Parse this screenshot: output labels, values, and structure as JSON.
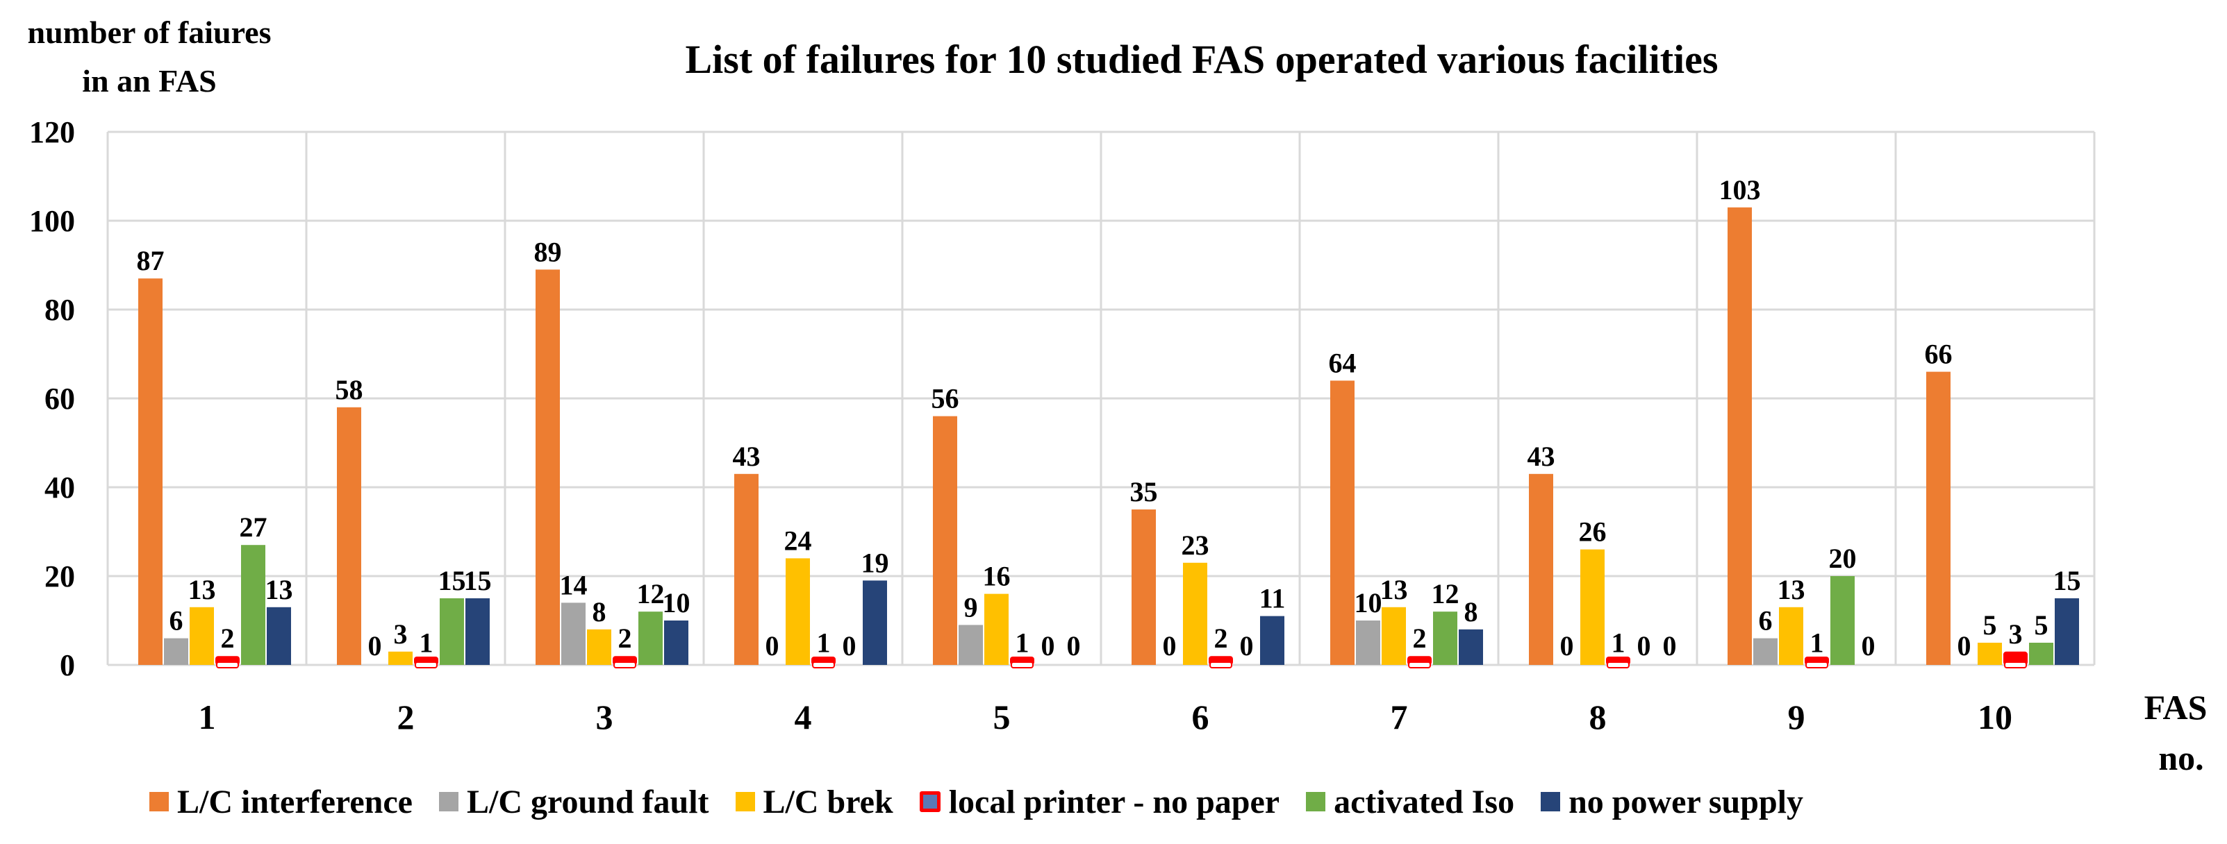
{
  "chart_data": {
    "type": "bar",
    "title": "List of failures for 10 studied FAS operated various facilities",
    "ylabel": [
      "number of faiures",
      "in an FAS"
    ],
    "xlabel": [
      "FAS",
      "no."
    ],
    "ylim": [
      0,
      120
    ],
    "yticks": [
      "0",
      "20",
      "40",
      "60",
      "80",
      "100",
      "120"
    ],
    "ytick_values": [
      0,
      20,
      40,
      60,
      80,
      100,
      120
    ],
    "categories": [
      "1",
      "2",
      "3",
      "4",
      "5",
      "6",
      "7",
      "8",
      "9",
      "10"
    ],
    "series": [
      {
        "name": "L/C interference",
        "color": "#ed7d31",
        "values": [
          87,
          58,
          89,
          43,
          56,
          35,
          64,
          43,
          103,
          66
        ],
        "labels": [
          "87",
          "58",
          "89",
          "43",
          "56",
          "35",
          "64",
          "43",
          "103",
          "66"
        ]
      },
      {
        "name": "L/C ground fault",
        "color": "#a5a5a5",
        "values": [
          6,
          0,
          14,
          0,
          9,
          0,
          10,
          0,
          6,
          0
        ],
        "labels": [
          "6",
          "0",
          "14",
          "0",
          "9",
          "0",
          "10",
          "0",
          "6",
          "0"
        ]
      },
      {
        "name": "L/C brek",
        "color": "#ffc000",
        "values": [
          13,
          3,
          8,
          24,
          16,
          23,
          13,
          26,
          13,
          5
        ],
        "labels": [
          "13",
          "3",
          "8",
          "24",
          "16",
          "23",
          "13",
          "26",
          "13",
          "5"
        ]
      },
      {
        "name": "local printer - no paper",
        "color": "#ff0000",
        "values": [
          2,
          1,
          2,
          1,
          1,
          2,
          2,
          1,
          1,
          3
        ],
        "labels": [
          "2",
          "1",
          "2",
          "1",
          "1",
          "2",
          "2",
          "1",
          "1",
          "3"
        ]
      },
      {
        "name": "activated Iso",
        "color": "#70ad47",
        "values": [
          27,
          15,
          12,
          0,
          0,
          0,
          12,
          0,
          20,
          5
        ],
        "labels": [
          "27",
          "15",
          "12",
          "0",
          "0",
          "0",
          "12",
          "0",
          "20",
          "5"
        ]
      },
      {
        "name": "no power supply",
        "color": "#264478",
        "values": [
          13,
          15,
          10,
          19,
          0,
          11,
          8,
          0,
          0,
          15
        ],
        "labels": [
          "13",
          "15",
          "10",
          "19",
          "0",
          "11",
          "8",
          "0",
          "0",
          "15"
        ]
      }
    ],
    "grid": true,
    "legend_position": "bottom"
  }
}
